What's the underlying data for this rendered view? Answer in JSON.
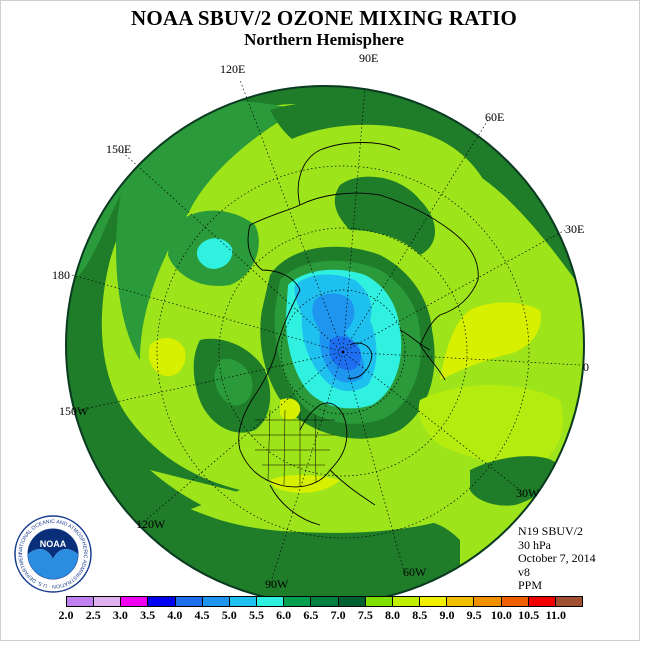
{
  "title": "NOAA SBUV/2 OZONE MIXING RATIO",
  "subtitle": "Northern Hemisphere",
  "info": {
    "instrument": "N19 SBUV/2",
    "level": "30 hPa",
    "date": "October 7, 2014",
    "version": "v8",
    "units": "PPM"
  },
  "longitude_labels": [
    "90E",
    "60E",
    "30E",
    "0",
    "30W",
    "60W",
    "90W",
    "120W",
    "150W",
    "180",
    "150E",
    "120E"
  ],
  "colorbar": {
    "ticks": [
      "2.0",
      "2.5",
      "3.0",
      "3.5",
      "4.0",
      "4.5",
      "5.0",
      "5.5",
      "6.0",
      "6.5",
      "7.0",
      "7.5",
      "8.0",
      "8.5",
      "9.0",
      "9.5",
      "10.0",
      "10.5",
      "11.0"
    ],
    "colors": [
      "#c080f0",
      "#e0b0f0",
      "#f000f0",
      "#0000f0",
      "#1e6ef0",
      "#1e96f0",
      "#1ec0f0",
      "#30f0e0",
      "#00a050",
      "#008040",
      "#006030",
      "#80e000",
      "#c0f000",
      "#f0f000",
      "#f0c000",
      "#f09000",
      "#f06000",
      "#f00000",
      "#a05030"
    ]
  },
  "logo": {
    "text": "NOAA",
    "ring_text": "NATIONAL OCEANIC AND ATMOSPHERIC ADMINISTRATION · U.S. DEPARTMENT OF COMMERCE"
  }
}
